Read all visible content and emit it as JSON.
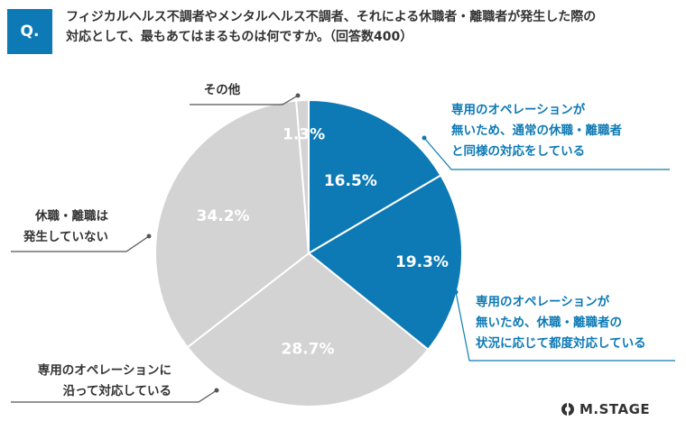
{
  "question": {
    "badge": "Q.",
    "line1": "フィジカルヘルス不調者やメンタルヘルス不調者、それによる休職者・離職者が発生した際の",
    "line2": "対応として、最もあてはまるものは何ですか。（回答数400）"
  },
  "colors": {
    "accent": "#0d7ab5",
    "grey": "#d3d3d3",
    "callout_blue": "#0d7ab5",
    "callout_dark": "#333333"
  },
  "chart_data": {
    "type": "pie",
    "start": "12 o'clock, clockwise",
    "slices": [
      {
        "label": "専用のオペレーションが無いため、通常の休職・離職者と同様の対応をしている",
        "value": 16.5,
        "display": "16.5%",
        "color": "#0d7ab5",
        "callout_lines": [
          "専用のオペレーションが",
          "無いため、通常の休職・離職者",
          "と同様の対応をしている"
        ]
      },
      {
        "label": "専用のオペレーションが無いため、休職・離職者の状況に応じて都度対応している",
        "value": 19.3,
        "display": "19.3%",
        "color": "#0d7ab5",
        "callout_lines": [
          "専用のオペレーションが",
          "無いため、休職・離職者の",
          "状況に応じて都度対応している"
        ]
      },
      {
        "label": "専用のオペレーションに沿って対応している",
        "value": 28.7,
        "display": "28.7%",
        "color": "#d3d3d3",
        "callout_lines": [
          "専用のオペレーションに",
          "沿って対応している"
        ]
      },
      {
        "label": "休職・離職は発生していない",
        "value": 34.2,
        "display": "34.2%",
        "color": "#d3d3d3",
        "callout_lines": [
          "休職・離職は",
          "発生していない"
        ]
      },
      {
        "label": "その他",
        "value": 1.3,
        "display": "1.3%",
        "color": "#d3d3d3",
        "callout_lines": [
          "その他"
        ]
      }
    ]
  },
  "brand": {
    "name": "M.STAGE"
  }
}
